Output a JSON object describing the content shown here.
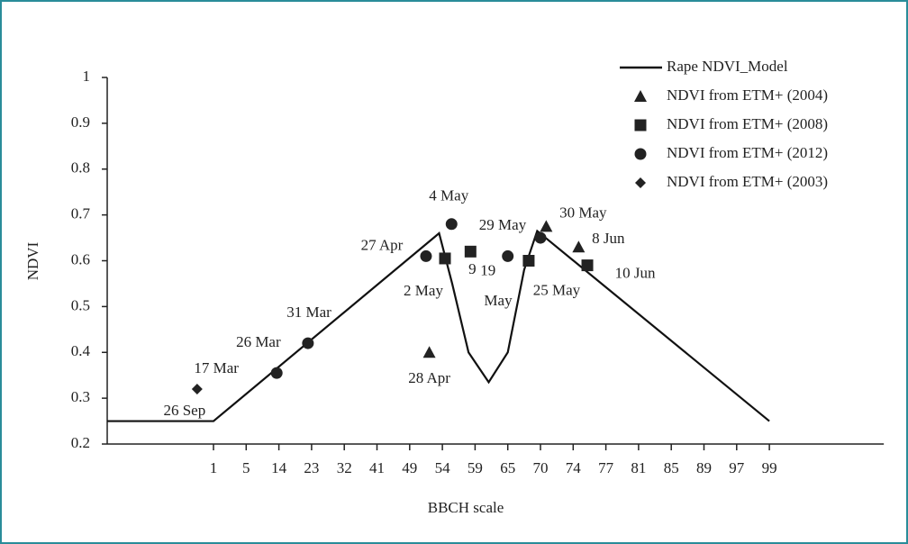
{
  "chart_data": {
    "type": "line",
    "xlabel": "BBCH scale",
    "ylabel": "NDVI",
    "xlim": [
      -12,
      106
    ],
    "xticks": [
      1,
      5,
      14,
      23,
      32,
      41,
      49,
      54,
      59,
      65,
      70,
      74,
      77,
      81,
      85,
      89,
      97,
      99
    ],
    "ylim": [
      0.2,
      1
    ],
    "yticks": [
      0.2,
      0.3,
      0.4,
      0.5,
      0.6,
      0.7,
      0.8,
      0.9,
      1
    ],
    "legend": "upper right",
    "series": [
      {
        "name": "Rape NDVI_Model",
        "marker": "line",
        "color": "#111111",
        "x": [
          -12,
          1,
          53.5,
          55.5,
          58,
          61.5,
          65,
          67.5,
          69.5,
          99
        ],
        "values": [
          0.25,
          0.25,
          0.66,
          0.55,
          0.4,
          0.335,
          0.4,
          0.58,
          0.665,
          0.25
        ]
      },
      {
        "name": "NDVI from ETM+ (2004)",
        "marker": "triangle",
        "color": "#222222",
        "x": [
          52,
          70.7,
          74.5
        ],
        "values": [
          0.4,
          0.675,
          0.63
        ],
        "labels": [
          "28 Apr",
          "30 May",
          "8 Jun"
        ]
      },
      {
        "name": "NDVI from ETM+ (2008)",
        "marker": "square",
        "color": "#222222",
        "x": [
          54.4,
          58.3,
          68.2,
          75.3
        ],
        "values": [
          0.605,
          0.62,
          0.6,
          0.59
        ],
        "labels": [
          "2 May",
          "9",
          "25 May",
          "10 Jun"
        ]
      },
      {
        "name": "NDVI from ETM+ (2012)",
        "marker": "circle",
        "color": "#222222",
        "x": [
          13.4,
          22,
          51.5,
          55.4,
          65,
          70
        ],
        "values": [
          0.355,
          0.42,
          0.61,
          0.68,
          0.61,
          0.65
        ],
        "labels": [
          "17 Mar",
          "26 Mar",
          "27 Apr",
          "4 May",
          "19",
          "29 May"
        ]
      },
      {
        "name": "NDVI from ETM+ (2003)",
        "marker": "diamond",
        "color": "#222222",
        "x": [
          -1
        ],
        "values": [
          0.32
        ],
        "labels": [
          "26 Sep"
        ]
      }
    ],
    "annotations": [
      "31 Mar",
      "May"
    ]
  }
}
